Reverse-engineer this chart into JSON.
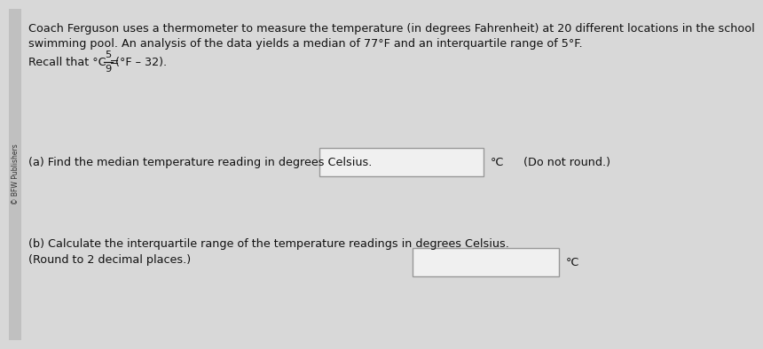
{
  "bg_color": "#d8d8d8",
  "main_bg": "#e8e8e8",
  "sidebar_text": "© BFW Publishers",
  "line1": "Coach Ferguson uses a thermometer to measure the temperature (in degrees Fahrenheit) at 20 different locations in the school",
  "line2": "swimming pool. An analysis of the data yields a median of 77°F and an interquartile range of 5°F.",
  "line3_prefix": "Recall that °C = ",
  "line3_fraction_num": "5",
  "line3_fraction_den": "9",
  "line3_suffix": "(°F – 32).",
  "part_a_label": "(a) Find the median temperature reading in degrees Celsius.",
  "part_a_unit": "°C",
  "part_a_note": "(Do not round.)",
  "part_b_line1": "(b) Calculate the interquartile range of the temperature readings in degrees Celsius.",
  "part_b_line2": "(Round to 2 decimal places.)",
  "part_b_unit": "°C",
  "box_color": "#f0f0f0",
  "box_edge_color": "#999999",
  "text_color": "#111111",
  "font_size_main": 9.2,
  "font_size_sidebar": 5.5
}
